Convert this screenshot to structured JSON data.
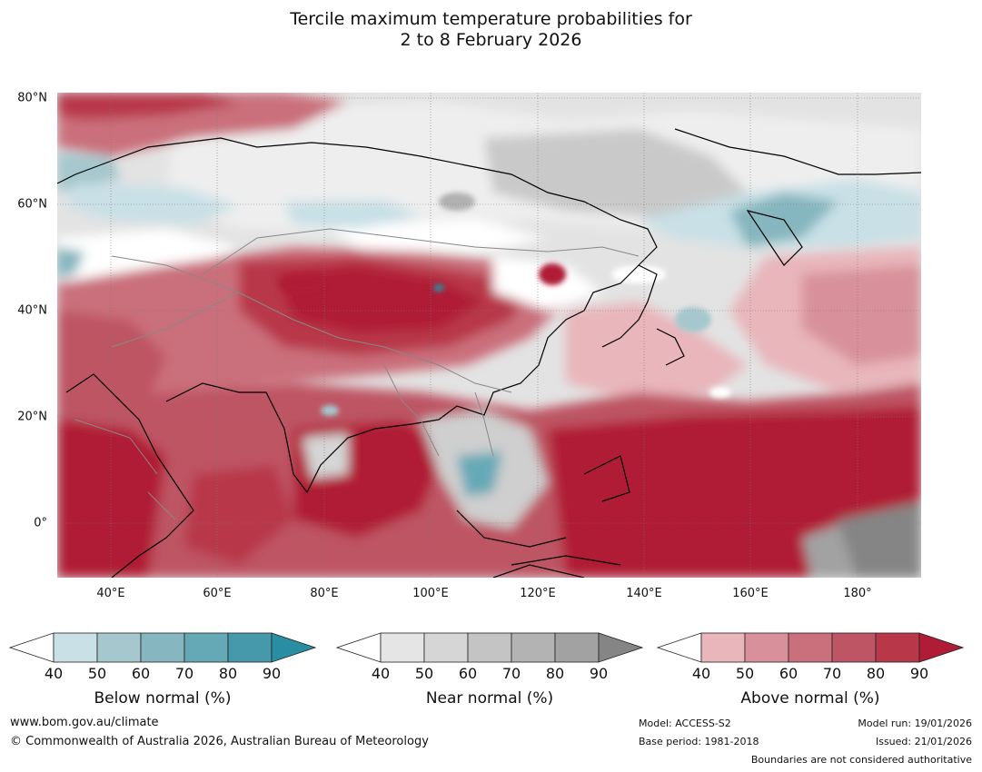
{
  "title": {
    "line1": "Tercile maximum temperature probabilities for",
    "line2": "2 to 8 February 2026"
  },
  "map": {
    "lat_labels": [
      "80°N",
      "60°N",
      "40°N",
      "20°N",
      "0°"
    ],
    "lon_labels": [
      "40°E",
      "60°E",
      "80°E",
      "100°E",
      "120°E",
      "140°E",
      "160°E",
      "180°"
    ]
  },
  "colorbars": {
    "below": {
      "label": "Below normal (%)",
      "ticks": [
        "40",
        "50",
        "60",
        "70",
        "80",
        "90"
      ],
      "colors": [
        "#ffffff",
        "#c8e0e6",
        "#a5c7cd",
        "#86b6bf",
        "#66a9b6",
        "#4599ab",
        "#2a8ea3"
      ]
    },
    "near": {
      "label": "Near normal (%)",
      "ticks": [
        "40",
        "50",
        "60",
        "70",
        "80",
        "90"
      ],
      "colors": [
        "#ffffff",
        "#e5e5e5",
        "#d6d6d6",
        "#c4c4c4",
        "#b3b3b3",
        "#a2a2a2",
        "#858585"
      ]
    },
    "above": {
      "label": "Above normal (%)",
      "ticks": [
        "40",
        "50",
        "60",
        "70",
        "80",
        "90"
      ],
      "colors": [
        "#ffffff",
        "#e8b6bb",
        "#d8919a",
        "#ca6f7c",
        "#be5564",
        "#b8384a",
        "#b01c36"
      ]
    }
  },
  "footer": {
    "website": "www.bom.gov.au/climate",
    "copyright": "© Commonwealth of Australia 2026, Australian Bureau of Meteorology",
    "model": "Model: ACCESS-S2",
    "base_period": "Base period: 1981-2018",
    "model_run": "Model run: 19/01/2026",
    "issued": "Issued: 21/01/2026",
    "disclaimer": "Boundaries are not considered authoritative"
  }
}
